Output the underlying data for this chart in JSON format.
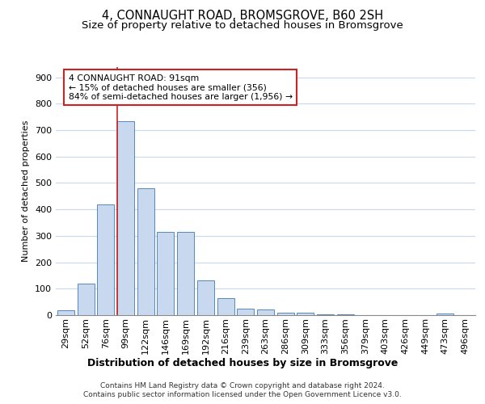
{
  "title1": "4, CONNAUGHT ROAD, BROMSGROVE, B60 2SH",
  "title2": "Size of property relative to detached houses in Bromsgrove",
  "xlabel": "Distribution of detached houses by size in Bromsgrove",
  "ylabel": "Number of detached properties",
  "categories": [
    "29sqm",
    "52sqm",
    "76sqm",
    "99sqm",
    "122sqm",
    "146sqm",
    "169sqm",
    "192sqm",
    "216sqm",
    "239sqm",
    "263sqm",
    "286sqm",
    "309sqm",
    "333sqm",
    "356sqm",
    "379sqm",
    "403sqm",
    "426sqm",
    "449sqm",
    "473sqm",
    "496sqm"
  ],
  "values": [
    18,
    120,
    418,
    733,
    480,
    315,
    315,
    130,
    65,
    25,
    20,
    10,
    8,
    3,
    3,
    0,
    0,
    0,
    0,
    5,
    0
  ],
  "bar_color": "#c8d8ee",
  "bar_edge_color": "#5588bb",
  "vline_color": "#cc2222",
  "vline_x_index": 2.58,
  "annotation_text": "4 CONNAUGHT ROAD: 91sqm\n← 15% of detached houses are smaller (356)\n84% of semi-detached houses are larger (1,956) →",
  "annotation_box_facecolor": "white",
  "annotation_box_edgecolor": "#cc2222",
  "ylim": [
    0,
    940
  ],
  "yticks": [
    0,
    100,
    200,
    300,
    400,
    500,
    600,
    700,
    800,
    900
  ],
  "footer": "Contains HM Land Registry data © Crown copyright and database right 2024.\nContains public sector information licensed under the Open Government Licence v3.0.",
  "bg_color": "white",
  "grid_color": "#c8d8ee",
  "title1_fontsize": 10.5,
  "title2_fontsize": 9.5,
  "xlabel_fontsize": 9,
  "ylabel_fontsize": 8,
  "tick_fontsize": 8,
  "footer_fontsize": 6.5
}
